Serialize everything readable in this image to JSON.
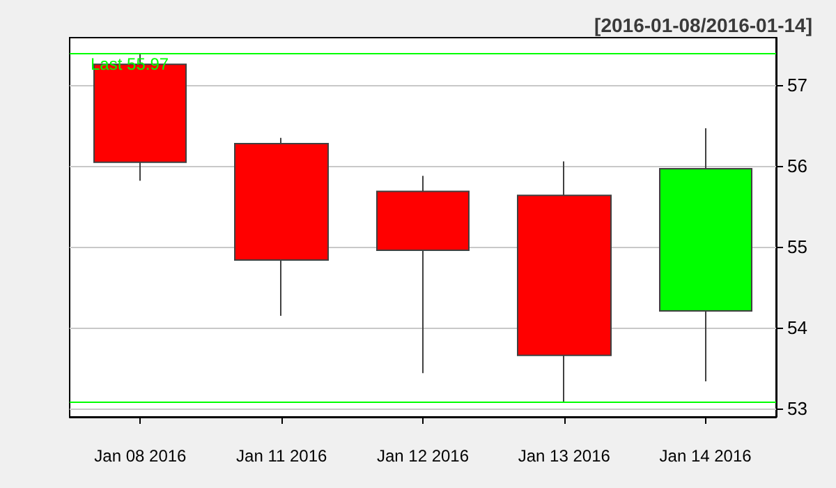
{
  "chart_data": {
    "type": "candlestick",
    "title": "[2016-01-08/2016-01-14]",
    "categories": [
      "Jan 08 2016",
      "Jan 11 2016",
      "Jan 12 2016",
      "Jan 13 2016",
      "Jan 14 2016"
    ],
    "ohlc": [
      [
        57.26,
        57.4,
        55.82,
        56.05
      ],
      [
        56.28,
        56.35,
        54.15,
        54.84
      ],
      [
        55.69,
        55.88,
        53.44,
        54.96
      ],
      [
        55.64,
        56.06,
        53.08,
        53.66
      ],
      [
        54.21,
        56.47,
        53.34,
        55.97
      ]
    ],
    "colors": [
      "#ff0000",
      "#ff0000",
      "#ff0000",
      "#ff0000",
      "#00ff00"
    ],
    "ylim": [
      52.9,
      57.59
    ],
    "yticks": [
      53,
      54,
      55,
      56,
      57
    ],
    "grid": "y",
    "ref_lines": [
      {
        "axis": "y",
        "value": 57.4,
        "label": "Last 55.97",
        "color": "#00ff00"
      },
      {
        "axis": "y",
        "value": 53.08,
        "color": "#00ff00"
      }
    ]
  }
}
